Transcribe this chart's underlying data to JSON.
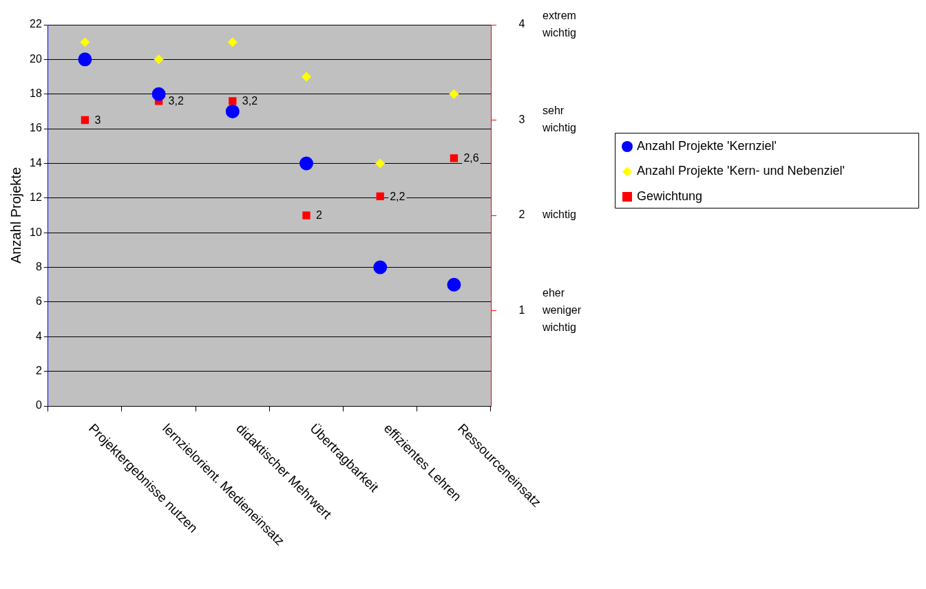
{
  "chart_data": {
    "type": "scatter",
    "ylabel": "Anzahl Projekte",
    "categories": [
      "Projektergebnisse nutzen",
      "lernzielorient. Medieneinsatz",
      "didaktischer Mehrwert",
      "Übertragbarkeit",
      "effizientes Lehren",
      "Ressourceneinsatz"
    ],
    "ylim": [
      0,
      22
    ],
    "yticks": [
      0,
      2,
      4,
      6,
      8,
      10,
      12,
      14,
      16,
      18,
      20,
      22
    ],
    "y2lim": [
      0,
      4
    ],
    "y2ticks": [
      1,
      2,
      3,
      4
    ],
    "annotations": [
      "eher weniger wichtig",
      "wichtig",
      "sehr wichtig",
      "extrem wichtig"
    ],
    "grid": "y",
    "legend": "right",
    "series": [
      {
        "name": "Anzahl Projekte 'Kernziel'",
        "color": "#0000ff",
        "marker": "circle",
        "values": [
          20,
          18,
          17,
          14,
          8,
          7
        ]
      },
      {
        "name": "Anzahl Projekte 'Kern- und Nebenziel'",
        "color": "#ffff00",
        "marker": "diamond",
        "values": [
          21,
          20,
          21,
          19,
          14,
          18
        ]
      },
      {
        "name": "Gewichtung",
        "color": "#ff0000",
        "marker": "square",
        "axis": "y2",
        "values": [
          3,
          3.2,
          3.2,
          2,
          2.2,
          2.6
        ],
        "value_labels": [
          "3",
          "3,2",
          "3,2",
          "2",
          "2,2",
          "2,6"
        ]
      }
    ]
  }
}
